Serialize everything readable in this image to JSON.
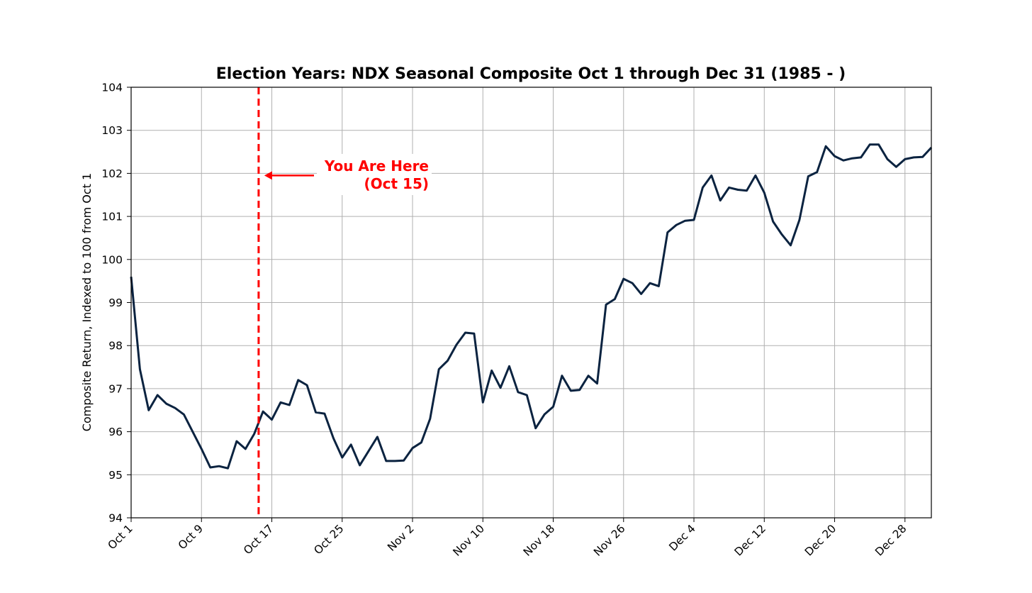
{
  "chart_data": {
    "type": "line",
    "title": "Election Years: NDX Seasonal Composite Oct 1 through Dec 31 (1985 - )",
    "xlabel": "",
    "ylabel": "Composite Return, Indexed to 100 from Oct 1",
    "ylim": [
      94,
      104
    ],
    "yticks": [
      "94",
      "95",
      "96",
      "97",
      "98",
      "99",
      "100",
      "101",
      "102",
      "103",
      "104"
    ],
    "xlim": [
      "Oct 1",
      "Dec 31"
    ],
    "xticks": [
      {
        "label": "Oct 1",
        "day": 0
      },
      {
        "label": "Oct 9",
        "day": 8
      },
      {
        "label": "Oct 17",
        "day": 16
      },
      {
        "label": "Oct 25",
        "day": 24
      },
      {
        "label": "Nov 2",
        "day": 32
      },
      {
        "label": "Nov 10",
        "day": 40
      },
      {
        "label": "Nov 18",
        "day": 48
      },
      {
        "label": "Nov 26",
        "day": 56
      },
      {
        "label": "Dec 4",
        "day": 64
      },
      {
        "label": "Dec 12",
        "day": 72
      },
      {
        "label": "Dec 20",
        "day": 80
      },
      {
        "label": "Dec 28",
        "day": 88
      }
    ],
    "grid": true,
    "series": [
      {
        "color": "#0b2340",
        "points": [
          [
            0,
            99.6
          ],
          [
            1,
            97.45
          ],
          [
            2,
            96.5
          ],
          [
            3,
            96.85
          ],
          [
            4,
            96.65
          ],
          [
            5,
            96.55
          ],
          [
            6,
            96.4
          ],
          [
            7,
            96.0
          ],
          [
            8,
            95.6
          ],
          [
            9,
            95.17
          ],
          [
            10,
            95.2
          ],
          [
            11,
            95.15
          ],
          [
            12,
            95.78
          ],
          [
            13,
            95.6
          ],
          [
            14,
            95.95
          ],
          [
            15,
            96.47
          ],
          [
            16,
            96.28
          ],
          [
            17,
            96.68
          ],
          [
            18,
            96.62
          ],
          [
            19,
            97.2
          ],
          [
            20,
            97.08
          ],
          [
            21,
            96.45
          ],
          [
            22,
            96.42
          ],
          [
            23,
            95.85
          ],
          [
            24,
            95.4
          ],
          [
            25,
            95.7
          ],
          [
            26,
            95.22
          ],
          [
            27,
            95.55
          ],
          [
            28,
            95.88
          ],
          [
            29,
            95.32
          ],
          [
            30,
            95.32
          ],
          [
            31,
            95.33
          ],
          [
            32,
            95.62
          ],
          [
            33,
            95.75
          ],
          [
            34,
            96.3
          ],
          [
            35,
            97.45
          ],
          [
            36,
            97.65
          ],
          [
            37,
            98.02
          ],
          [
            38,
            98.3
          ],
          [
            39,
            98.28
          ],
          [
            40,
            96.68
          ],
          [
            41,
            97.42
          ],
          [
            42,
            97.02
          ],
          [
            43,
            97.52
          ],
          [
            44,
            96.92
          ],
          [
            45,
            96.85
          ],
          [
            46,
            96.08
          ],
          [
            47,
            96.4
          ],
          [
            48,
            96.58
          ],
          [
            49,
            97.3
          ],
          [
            50,
            96.95
          ],
          [
            51,
            96.97
          ],
          [
            52,
            97.3
          ],
          [
            53,
            97.12
          ],
          [
            54,
            98.95
          ],
          [
            55,
            99.08
          ],
          [
            56,
            99.55
          ],
          [
            57,
            99.45
          ],
          [
            58,
            99.2
          ],
          [
            59,
            99.45
          ],
          [
            60,
            99.38
          ],
          [
            61,
            100.63
          ],
          [
            62,
            100.8
          ],
          [
            63,
            100.9
          ],
          [
            64,
            100.92
          ],
          [
            65,
            101.67
          ],
          [
            66,
            101.95
          ],
          [
            67,
            101.37
          ],
          [
            68,
            101.67
          ],
          [
            69,
            101.62
          ],
          [
            70,
            101.6
          ],
          [
            71,
            101.95
          ],
          [
            72,
            101.55
          ],
          [
            73,
            100.88
          ],
          [
            74,
            100.58
          ],
          [
            75,
            100.33
          ],
          [
            76,
            100.92
          ],
          [
            77,
            101.93
          ],
          [
            78,
            102.03
          ],
          [
            79,
            102.63
          ],
          [
            80,
            102.4
          ],
          [
            81,
            102.3
          ],
          [
            82,
            102.35
          ],
          [
            83,
            102.37
          ],
          [
            84,
            102.67
          ],
          [
            85,
            102.67
          ],
          [
            86,
            102.33
          ],
          [
            87,
            102.15
          ],
          [
            88,
            102.33
          ],
          [
            89,
            102.37
          ],
          [
            90,
            102.38
          ],
          [
            91,
            102.6
          ]
        ]
      }
    ],
    "marker_line": {
      "day": 14.5,
      "color": "#ff0000",
      "style": "dashed"
    },
    "annotation": {
      "line1": "You Are Here",
      "line2": "(Oct 15)",
      "arrow_to_y": 101.95,
      "color": "#ff0000"
    }
  }
}
